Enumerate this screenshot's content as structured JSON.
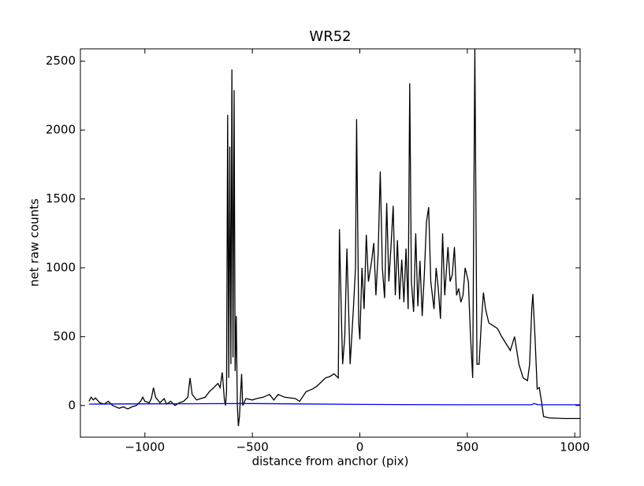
{
  "chart_data": {
    "type": "line",
    "title": "WR52",
    "xlabel": "distance from anchor (pix)",
    "ylabel": "net raw counts",
    "xlim": [
      -1300,
      1025
    ],
    "ylim": [
      -230,
      2590
    ],
    "xticks": [
      {
        "value": -1000,
        "label": "−1000"
      },
      {
        "value": -500,
        "label": "−500"
      },
      0,
      500,
      1000
    ],
    "yticks": [
      0,
      500,
      1000,
      1500,
      2000,
      2500
    ],
    "series": [
      {
        "color": "#000000",
        "x": [
          -1260,
          -1250,
          -1240,
          -1230,
          -1210,
          -1190,
          -1170,
          -1150,
          -1120,
          -1100,
          -1080,
          -1060,
          -1040,
          -1020,
          -1010,
          -1000,
          -980,
          -970,
          -960,
          -950,
          -930,
          -910,
          -900,
          -880,
          -860,
          -840,
          -820,
          -800,
          -790,
          -780,
          -760,
          -740,
          -720,
          -700,
          -680,
          -660,
          -650,
          -640,
          -630,
          -625,
          -620,
          -615,
          -610,
          -605,
          -600,
          -595,
          -590,
          -585,
          -580,
          -575,
          -570,
          -565,
          -560,
          -550,
          -545,
          -530,
          -500,
          -480,
          -450,
          -420,
          -400,
          -380,
          -350,
          -300,
          -280,
          -250,
          -220,
          -200,
          -180,
          -160,
          -140,
          -120,
          -100,
          -95,
          -85,
          -80,
          -70,
          -60,
          -45,
          -30,
          -20,
          -15,
          -5,
          0,
          10,
          20,
          30,
          40,
          55,
          65,
          75,
          85,
          95,
          105,
          115,
          125,
          135,
          145,
          155,
          165,
          175,
          185,
          195,
          205,
          215,
          225,
          232,
          240,
          250,
          260,
          270,
          280,
          290,
          300,
          310,
          320,
          330,
          345,
          355,
          365,
          375,
          385,
          395,
          410,
          420,
          430,
          440,
          450,
          460,
          470,
          480,
          490,
          505,
          515,
          525,
          535,
          545,
          555,
          565,
          575,
          585,
          600,
          620,
          640,
          660,
          680,
          700,
          720,
          740,
          760,
          780,
          790,
          800,
          805,
          815,
          825,
          835,
          845,
          855,
          880,
          950,
          1025
        ],
        "values": [
          30,
          60,
          40,
          55,
          20,
          10,
          30,
          0,
          -20,
          -10,
          -25,
          -10,
          0,
          30,
          60,
          30,
          20,
          50,
          130,
          60,
          20,
          50,
          10,
          30,
          0,
          20,
          30,
          60,
          200,
          80,
          40,
          50,
          60,
          100,
          130,
          160,
          130,
          240,
          40,
          0,
          100,
          2110,
          200,
          1880,
          300,
          2440,
          350,
          2290,
          250,
          650,
          0,
          -150,
          -80,
          230,
          0,
          50,
          40,
          50,
          60,
          80,
          40,
          80,
          60,
          50,
          30,
          100,
          120,
          140,
          170,
          200,
          210,
          230,
          200,
          1280,
          600,
          300,
          500,
          1140,
          300,
          700,
          1000,
          2080,
          600,
          480,
          1000,
          700,
          1240,
          900,
          1050,
          1180,
          800,
          1100,
          1700,
          1000,
          780,
          1470,
          900,
          1150,
          1450,
          800,
          1200,
          770,
          1060,
          750,
          1140,
          700,
          2340,
          900,
          680,
          1250,
          720,
          1050,
          650,
          950,
          1330,
          1440,
          900,
          700,
          1000,
          850,
          630,
          1250,
          800,
          1150,
          900,
          950,
          1150,
          800,
          850,
          750,
          800,
          1000,
          900,
          500,
          200,
          2600,
          300,
          300,
          600,
          820,
          700,
          600,
          580,
          560,
          500,
          450,
          400,
          500,
          300,
          200,
          180,
          300,
          700,
          810,
          500,
          120,
          130,
          30,
          -80,
          -90,
          -95,
          -95
        ]
      },
      {
        "color": "#0000ff",
        "x": [
          -1260,
          -1000,
          -500,
          0,
          500,
          800,
          810,
          830,
          1025
        ],
        "values": [
          10,
          12,
          14,
          8,
          5,
          5,
          15,
          5,
          5
        ]
      }
    ]
  }
}
